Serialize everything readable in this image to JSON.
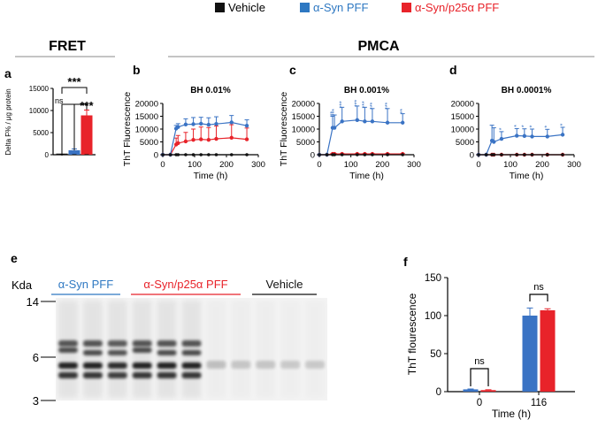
{
  "legend": [
    {
      "label": "Vehicle",
      "color": "#111111"
    },
    {
      "label": "α-Syn PFF",
      "color": "#2e78c2"
    },
    {
      "label": "α-Syn/p25α PFF",
      "color": "#e8232a"
    }
  ],
  "section_labels": {
    "fret": "FRET",
    "pmca": "PMCA"
  },
  "colors": {
    "vehicle": "#111111",
    "syn": "#3a73c4",
    "p25": "#e8232a",
    "gel_syn": "#2e78c2",
    "gel_p25": "#e8232a"
  },
  "chart_data": [
    {
      "panel": "a",
      "type": "bar",
      "ylabel": "Delta F% / μg protein",
      "ylim": [
        0,
        15000
      ],
      "yticks": [
        "0",
        "5000",
        "10000",
        "15000"
      ],
      "categories": [
        "Vehicle",
        "α-Syn PFF",
        "α-Syn/p25α PFF"
      ],
      "values": [
        0,
        1000,
        8900
      ],
      "errors": [
        0,
        300,
        1200
      ],
      "colors": [
        "#111111",
        "#3a73c4",
        "#e8232a"
      ],
      "annotations": [
        "ns",
        "***",
        "***"
      ]
    },
    {
      "panel": "b",
      "type": "line",
      "title": "BH 0.01%",
      "xlabel": "Time (h)",
      "ylabel": "ThT Fluorescence",
      "xlim": [
        0,
        300
      ],
      "ylim": [
        0,
        20000
      ],
      "xticks": [
        "0",
        "100",
        "200",
        "300"
      ],
      "yticks": [
        "0",
        "5000",
        "10000",
        "15000",
        "20000"
      ],
      "x": [
        0,
        24,
        42,
        48,
        72,
        96,
        120,
        144,
        168,
        216,
        264
      ],
      "series": [
        {
          "key": "vehicle",
          "values": [
            0,
            0,
            0,
            0,
            0,
            0,
            0,
            0,
            0,
            0,
            0
          ],
          "errors": [
            0,
            0,
            0,
            0,
            0,
            0,
            0,
            0,
            0,
            0,
            0
          ]
        },
        {
          "key": "syn",
          "values": [
            0,
            0,
            10200,
            10800,
            11800,
            11900,
            12100,
            11700,
            12000,
            12600,
            11300
          ],
          "errors": [
            0,
            0,
            1200,
            1300,
            2200,
            2600,
            2500,
            2700,
            2800,
            2700,
            2300
          ]
        },
        {
          "key": "p25",
          "values": [
            0,
            0,
            4000,
            4500,
            5200,
            5800,
            6000,
            5800,
            6200,
            6600,
            6000
          ],
          "errors": [
            0,
            0,
            2500,
            3000,
            3500,
            4200,
            4800,
            4800,
            5000,
            5100,
            4400
          ]
        }
      ],
      "sig": []
    },
    {
      "panel": "c",
      "type": "line",
      "title": "BH 0.001%",
      "xlabel": "Time (h)",
      "ylabel": "ThT Fluorescence",
      "xlim": [
        0,
        300
      ],
      "ylim": [
        0,
        20000
      ],
      "xticks": [
        "0",
        "100",
        "200",
        "300"
      ],
      "yticks": [
        "0",
        "5000",
        "10000",
        "15000",
        "20000"
      ],
      "x": [
        0,
        24,
        42,
        48,
        72,
        120,
        144,
        168,
        216,
        264
      ],
      "series": [
        {
          "key": "vehicle",
          "values": [
            0,
            0,
            0,
            0,
            0,
            0,
            0,
            0,
            0,
            0
          ],
          "errors": [
            0,
            0,
            0,
            0,
            0,
            0,
            0,
            0,
            0,
            0
          ]
        },
        {
          "key": "syn",
          "values": [
            0,
            0,
            10500,
            10500,
            13000,
            13500,
            13000,
            13000,
            12500,
            12500
          ],
          "errors": [
            0,
            0,
            4500,
            5000,
            5500,
            5500,
            5500,
            5000,
            5500,
            3500
          ]
        },
        {
          "key": "p25",
          "values": [
            0,
            0,
            300,
            300,
            300,
            300,
            300,
            300,
            300,
            300
          ],
          "errors": [
            0,
            0,
            200,
            200,
            200,
            200,
            200,
            200,
            200,
            200
          ]
        }
      ],
      "sig": [
        {
          "x": 42,
          "label": "**"
        },
        {
          "x": 48,
          "label": "***"
        },
        {
          "x": 72,
          "label": "***"
        },
        {
          "x": 120,
          "label": "***"
        },
        {
          "x": 144,
          "label": "***"
        },
        {
          "x": 168,
          "label": "***"
        },
        {
          "x": 216,
          "label": "***"
        },
        {
          "x": 264,
          "label": "**"
        }
      ]
    },
    {
      "panel": "d",
      "type": "line",
      "title": "BH 0.0001%",
      "xlabel": "Time (h)",
      "ylabel": "",
      "xlim": [
        0,
        300
      ],
      "ylim": [
        0,
        20000
      ],
      "xticks": [
        "0",
        "100",
        "200",
        "300"
      ],
      "yticks": [
        "0",
        "5000",
        "10000",
        "15000",
        "20000"
      ],
      "x": [
        0,
        24,
        42,
        48,
        72,
        120,
        144,
        168,
        216,
        264
      ],
      "series": [
        {
          "key": "vehicle",
          "values": [
            0,
            0,
            0,
            0,
            0,
            0,
            0,
            0,
            0,
            0
          ],
          "errors": [
            0,
            0,
            0,
            0,
            0,
            0,
            0,
            0,
            0,
            0
          ]
        },
        {
          "key": "syn",
          "values": [
            0,
            0,
            5500,
            5000,
            6200,
            7400,
            7300,
            7100,
            7100,
            7800
          ],
          "errors": [
            0,
            0,
            6000,
            5500,
            2800,
            2800,
            2800,
            2900,
            2800,
            2900
          ]
        },
        {
          "key": "p25",
          "values": [
            0,
            0,
            0,
            0,
            0,
            0,
            0,
            0,
            0,
            0
          ],
          "errors": [
            0,
            0,
            0,
            0,
            0,
            0,
            0,
            0,
            0,
            0
          ]
        }
      ],
      "sig": [
        {
          "x": 72,
          "label": "*"
        },
        {
          "x": 120,
          "label": "*"
        },
        {
          "x": 144,
          "label": "*"
        },
        {
          "x": 168,
          "label": "*"
        },
        {
          "x": 216,
          "label": "*"
        },
        {
          "x": 264,
          "label": "*"
        }
      ]
    },
    {
      "panel": "f",
      "type": "bar",
      "xlabel": "Time (h)",
      "ylabel": "ThT flourescence",
      "ylim": [
        0,
        150
      ],
      "yticks": [
        "0",
        "50",
        "100",
        "150"
      ],
      "categories": [
        "0",
        "116"
      ],
      "series": [
        {
          "key": "syn",
          "values": [
            3,
            100
          ],
          "errors": [
            0.5,
            10
          ]
        },
        {
          "key": "p25",
          "values": [
            2,
            107
          ],
          "errors": [
            0.5,
            2
          ]
        }
      ],
      "annotations": [
        "ns",
        "ns"
      ]
    }
  ],
  "blot": {
    "panel": "e",
    "unit": "Kda",
    "markers": [
      "14",
      "6",
      "3"
    ],
    "groups": [
      {
        "label": "α-Syn PFF",
        "colorKey": "gel_syn"
      },
      {
        "label": "α-Syn/p25α PFF",
        "colorKey": "gel_p25"
      },
      {
        "label": "Vehicle",
        "colorKey": "vehicle"
      }
    ],
    "lanes": [
      {
        "group": 0,
        "i": 1.0
      },
      {
        "group": 0,
        "i": 1.0
      },
      {
        "group": 0,
        "i": 0.95
      },
      {
        "group": 1,
        "i": 1.0
      },
      {
        "group": 1,
        "i": 1.0
      },
      {
        "group": 1,
        "i": 1.0
      },
      {
        "group": 2,
        "i": 0.35
      },
      {
        "group": 2,
        "i": 0.3
      },
      {
        "group": 2,
        "i": 0.3
      },
      {
        "group": 2,
        "i": 0.28
      },
      {
        "group": 2,
        "i": 0.28
      }
    ]
  }
}
